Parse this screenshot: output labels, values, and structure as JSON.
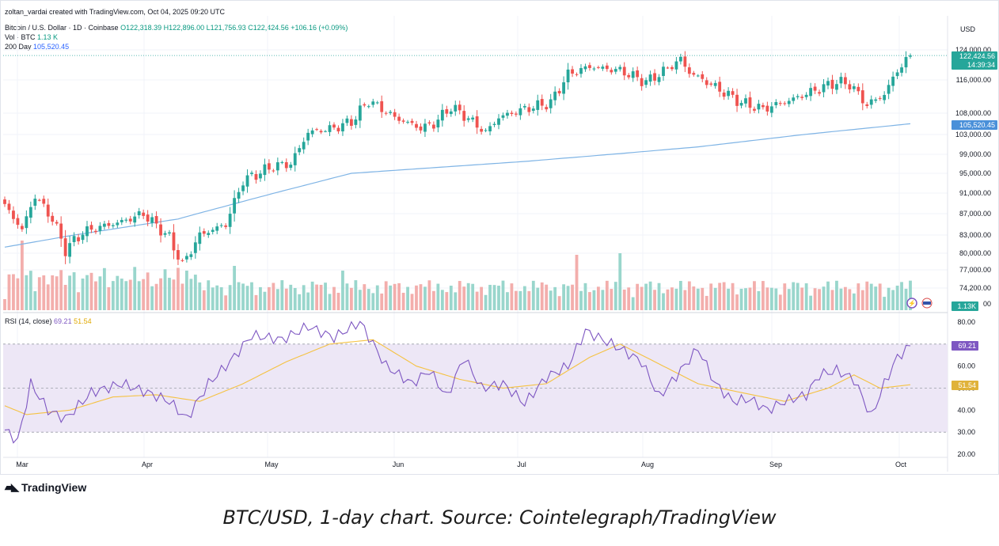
{
  "header": {
    "author_line": "zoltan_vardai created with TradingView.com, Oct 04, 2025 09:20 UTC",
    "symbol_line": "Bitcoin / U.S. Dollar · 1D · Coinbase",
    "ohlc": "O122,318.39 H122,896.00 L121,756.93 C122,424.56 +106.16 (+0.09%)",
    "vol_label": "Vol · BTC",
    "vol_value": "1.13 K",
    "ma_label": "200 Day",
    "ma_value": "105,520.45",
    "currency": "USD"
  },
  "price_axis_labels": [
    "124,000.00",
    "116,000.00",
    "108,000.00",
    "103,000.00",
    "99,000.00",
    "95,000.00",
    "91,000.00",
    "87,000.00",
    "83,000.00",
    "80,000.00",
    "77,000.00",
    "74,200.00",
    "00"
  ],
  "badges": {
    "last_price": "122,424.56",
    "countdown": "14:39:34",
    "ma_price": "105,520.45",
    "volume": "1.13K",
    "rsi": "69.21",
    "rsi_ma": "51.54"
  },
  "rsi_panel": {
    "label": "RSI (14, close)",
    "value": "69.21",
    "ma_value": "51.54",
    "axis_labels": [
      "80.00",
      "60.00",
      "50.00",
      "40.00",
      "30.00",
      "20.00"
    ]
  },
  "time_axis_labels": [
    "Mar",
    "Apr",
    "May",
    "Jun",
    "Jul",
    "Aug",
    "Sep",
    "Oct"
  ],
  "watermark": "TradingView",
  "caption": "BTC/USD, 1-day chart. Source: Cointelegraph/TradingView",
  "colors": {
    "up": "#26a69a",
    "down": "#ef5350",
    "ma": "#7fb4e5",
    "rsi": "#7e57c2",
    "rsi_ma": "#f5c242",
    "rsi_band": "#ede7f6"
  },
  "chart_data": {
    "type": "candlestick",
    "symbol": "Bitcoin / U.S. Dollar",
    "interval": "1D",
    "price_keypoints": [
      {
        "day": 0,
        "close": 88500
      },
      {
        "day": 4,
        "close": 84000
      },
      {
        "day": 7,
        "close": 90500
      },
      {
        "day": 11,
        "close": 86000
      },
      {
        "day": 14,
        "close": 80500
      },
      {
        "day": 18,
        "close": 83500
      },
      {
        "day": 22,
        "close": 84500
      },
      {
        "day": 27,
        "close": 85500
      },
      {
        "day": 32,
        "close": 87000
      },
      {
        "day": 38,
        "close": 82500
      },
      {
        "day": 41,
        "close": 78000
      },
      {
        "day": 45,
        "close": 83000
      },
      {
        "day": 51,
        "close": 85000
      },
      {
        "day": 55,
        "close": 93500
      },
      {
        "day": 62,
        "close": 96500
      },
      {
        "day": 66,
        "close": 97000
      },
      {
        "day": 70,
        "close": 103500
      },
      {
        "day": 76,
        "close": 104500
      },
      {
        "day": 80,
        "close": 106000
      },
      {
        "day": 84,
        "close": 111000
      },
      {
        "day": 90,
        "close": 107000
      },
      {
        "day": 96,
        "close": 104500
      },
      {
        "day": 99,
        "close": 105500
      },
      {
        "day": 103,
        "close": 109500
      },
      {
        "day": 106,
        "close": 107500
      },
      {
        "day": 111,
        "close": 103500
      },
      {
        "day": 114,
        "close": 107000
      },
      {
        "day": 120,
        "close": 109000
      },
      {
        "day": 126,
        "close": 110500
      },
      {
        "day": 130,
        "close": 117500
      },
      {
        "day": 135,
        "close": 119500
      },
      {
        "day": 142,
        "close": 118500
      },
      {
        "day": 148,
        "close": 115500
      },
      {
        "day": 151,
        "close": 117500
      },
      {
        "day": 156,
        "close": 121500
      },
      {
        "day": 158,
        "close": 118000
      },
      {
        "day": 162,
        "close": 115500
      },
      {
        "day": 166,
        "close": 113000
      },
      {
        "day": 170,
        "close": 110500
      },
      {
        "day": 175,
        "close": 109000
      },
      {
        "day": 181,
        "close": 111000
      },
      {
        "day": 187,
        "close": 113500
      },
      {
        "day": 192,
        "close": 115500
      },
      {
        "day": 195,
        "close": 115000
      },
      {
        "day": 199,
        "close": 110000
      },
      {
        "day": 203,
        "close": 112500
      },
      {
        "day": 206,
        "close": 118500
      },
      {
        "day": 209,
        "close": 122500
      }
    ],
    "ma200_keypoints": [
      {
        "day": 0,
        "value": 81000
      },
      {
        "day": 40,
        "value": 86000
      },
      {
        "day": 80,
        "value": 95000
      },
      {
        "day": 120,
        "value": 97500
      },
      {
        "day": 160,
        "value": 100500
      },
      {
        "day": 209,
        "value": 105520.45
      }
    ],
    "rsi_keypoints": [
      {
        "day": 0,
        "value": 31
      },
      {
        "day": 3,
        "value": 26
      },
      {
        "day": 6,
        "value": 52
      },
      {
        "day": 10,
        "value": 40
      },
      {
        "day": 14,
        "value": 36
      },
      {
        "day": 20,
        "value": 48
      },
      {
        "day": 27,
        "value": 52
      },
      {
        "day": 33,
        "value": 48
      },
      {
        "day": 38,
        "value": 44
      },
      {
        "day": 42,
        "value": 36
      },
      {
        "day": 47,
        "value": 52
      },
      {
        "day": 52,
        "value": 62
      },
      {
        "day": 57,
        "value": 74
      },
      {
        "day": 64,
        "value": 72
      },
      {
        "day": 70,
        "value": 78
      },
      {
        "day": 76,
        "value": 73
      },
      {
        "day": 82,
        "value": 80
      },
      {
        "day": 88,
        "value": 60
      },
      {
        "day": 94,
        "value": 52
      },
      {
        "day": 98,
        "value": 58
      },
      {
        "day": 102,
        "value": 46
      },
      {
        "day": 106,
        "value": 64
      },
      {
        "day": 110,
        "value": 50
      },
      {
        "day": 115,
        "value": 52
      },
      {
        "day": 120,
        "value": 43
      },
      {
        "day": 125,
        "value": 55
      },
      {
        "day": 130,
        "value": 60
      },
      {
        "day": 134,
        "value": 76
      },
      {
        "day": 138,
        "value": 72
      },
      {
        "day": 142,
        "value": 68
      },
      {
        "day": 147,
        "value": 62
      },
      {
        "day": 151,
        "value": 46
      },
      {
        "day": 156,
        "value": 58
      },
      {
        "day": 160,
        "value": 68
      },
      {
        "day": 164,
        "value": 52
      },
      {
        "day": 168,
        "value": 44
      },
      {
        "day": 172,
        "value": 45
      },
      {
        "day": 176,
        "value": 40
      },
      {
        "day": 180,
        "value": 44
      },
      {
        "day": 185,
        "value": 47
      },
      {
        "day": 188,
        "value": 56
      },
      {
        "day": 192,
        "value": 58
      },
      {
        "day": 196,
        "value": 54
      },
      {
        "day": 200,
        "value": 37
      },
      {
        "day": 203,
        "value": 52
      },
      {
        "day": 206,
        "value": 64
      },
      {
        "day": 209,
        "value": 69.21
      }
    ],
    "rsi_ma_keypoints": [
      {
        "day": 0,
        "value": 42
      },
      {
        "day": 5,
        "value": 38
      },
      {
        "day": 15,
        "value": 40
      },
      {
        "day": 25,
        "value": 46
      },
      {
        "day": 35,
        "value": 47
      },
      {
        "day": 45,
        "value": 44
      },
      {
        "day": 55,
        "value": 52
      },
      {
        "day": 65,
        "value": 62
      },
      {
        "day": 75,
        "value": 70
      },
      {
        "day": 85,
        "value": 72
      },
      {
        "day": 95,
        "value": 60
      },
      {
        "day": 105,
        "value": 54
      },
      {
        "day": 115,
        "value": 50
      },
      {
        "day": 125,
        "value": 52
      },
      {
        "day": 135,
        "value": 64
      },
      {
        "day": 142,
        "value": 70
      },
      {
        "day": 150,
        "value": 62
      },
      {
        "day": 160,
        "value": 52
      },
      {
        "day": 170,
        "value": 48
      },
      {
        "day": 180,
        "value": 44
      },
      {
        "day": 190,
        "value": 50
      },
      {
        "day": 196,
        "value": 56
      },
      {
        "day": 202,
        "value": 50
      },
      {
        "day": 209,
        "value": 51.54
      }
    ],
    "price_ylim": [
      74200,
      124000
    ],
    "rsi_ylim": [
      20,
      80
    ],
    "rsi_bands": [
      30,
      50,
      70
    ],
    "volume_value": "1.13K",
    "legend": "top-left"
  }
}
